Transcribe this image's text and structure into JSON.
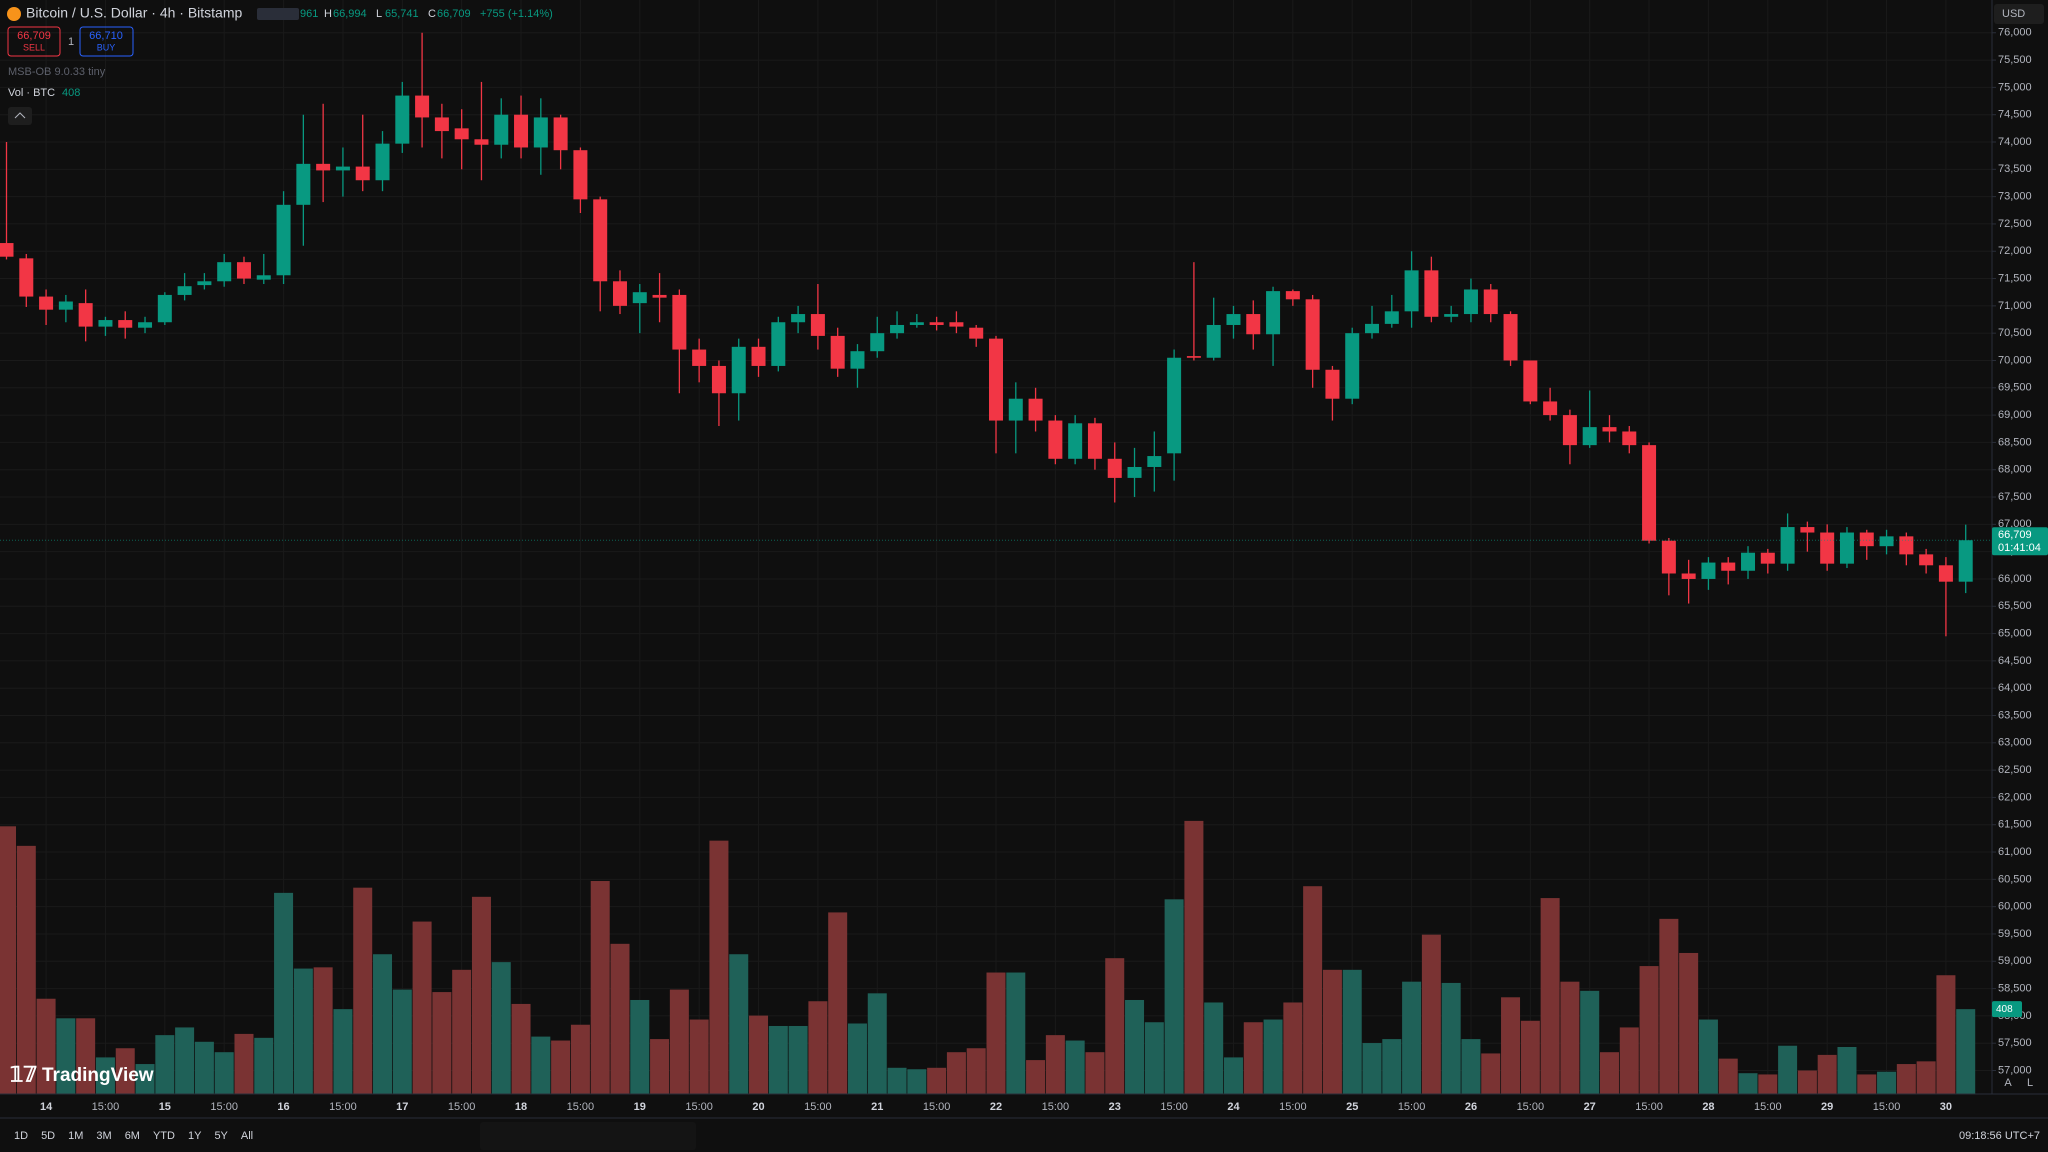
{
  "header": {
    "symbol": "Bitcoin / U.S. Dollar · 4h · Bitstamp",
    "open_partial": "961",
    "ohlc": [
      {
        "key": "H",
        "value": "66,994"
      },
      {
        "key": "L",
        "value": "65,741"
      },
      {
        "key": "C",
        "value": "66,709"
      }
    ],
    "change": "+755 (+1.14%)",
    "sell_price": "66,709",
    "sell": "SELL",
    "spread": "1",
    "buy_price": "66,710",
    "buy": "BUY",
    "indicator": "MSB-OB 9.0.33 tiny",
    "volume_name": "Vol · BTC",
    "volume_value": "408",
    "currency": "USD"
  },
  "toolbar": {
    "ranges": [
      "1D",
      "5D",
      "1M",
      "3M",
      "6M",
      "YTD",
      "1Y",
      "5Y",
      "All"
    ],
    "clock": "09:18:56 UTC+7",
    "logo": "TradingView",
    "auto": "A",
    "log": "L"
  },
  "chart_data": {
    "type": "candlestick",
    "categories": [
      null,
      null,
      "14",
      null,
      null,
      "15:00",
      null,
      null,
      "15",
      null,
      null,
      "15:00",
      null,
      null,
      "16",
      null,
      null,
      "15:00",
      null,
      null,
      "17",
      null,
      null,
      "15:00",
      null,
      null,
      "18",
      null,
      null,
      "15:00",
      null,
      null,
      "19",
      null,
      null,
      "15:00",
      null,
      null,
      "20",
      null,
      null,
      "15:00",
      null,
      null,
      "21",
      null,
      null,
      "15:00",
      null,
      null,
      "22",
      null,
      null,
      "15:00",
      null,
      null,
      "23",
      null,
      null,
      "15:00",
      null,
      null,
      "24",
      null,
      null,
      "15:00",
      null,
      null,
      "25",
      null,
      null,
      "15:00",
      null,
      null,
      "26",
      null,
      null,
      "15:00",
      null,
      null,
      "27",
      null,
      null,
      "15:00",
      null,
      null,
      "28",
      null,
      null,
      "15:00",
      null,
      null,
      "29",
      null,
      null,
      "15:00",
      null,
      null,
      "30",
      null
    ],
    "open": [
      72150,
      71870,
      71170,
      70930,
      71050,
      70620,
      70740,
      70600,
      70700,
      71200,
      71380,
      71450,
      71800,
      71480,
      71560,
      72850,
      73600,
      73480,
      73550,
      73300,
      73970,
      74850,
      74450,
      74250,
      74050,
      73950,
      74500,
      73900,
      74450,
      73850,
      72950,
      71450,
      71050,
      71200,
      71200,
      70200,
      69900,
      69400,
      70250,
      69900,
      70700,
      70850,
      70450,
      69850,
      70170,
      70500,
      70650,
      70700,
      70700,
      70600,
      70400,
      68900,
      69300,
      68900,
      68200,
      68850,
      68200,
      67850,
      68050,
      68300,
      70080,
      70050,
      70650,
      70850,
      70480,
      71270,
      71120,
      69830,
      69300,
      70500,
      70670,
      70900,
      71650,
      70800,
      70850,
      71300,
      70850,
      70000,
      69250,
      69000,
      68450,
      68780,
      68700,
      68450,
      66700,
      66100,
      66000,
      66300,
      66150,
      66480,
      66280,
      66950,
      66850,
      66280,
      66850,
      66600,
      66780,
      66450,
      66250,
      65950
    ],
    "high": [
      74000,
      71950,
      71300,
      71200,
      71300,
      70800,
      70900,
      70800,
      71250,
      71600,
      71600,
      71950,
      71900,
      71950,
      73100,
      74500,
      74700,
      73900,
      74500,
      74200,
      75100,
      76000,
      74700,
      74600,
      75100,
      74800,
      74850,
      74800,
      74500,
      73900,
      73000,
      71650,
      71400,
      71600,
      71300,
      70400,
      70000,
      70400,
      70400,
      70800,
      71000,
      71400,
      70600,
      70300,
      70800,
      70900,
      70850,
      70800,
      70900,
      70650,
      70450,
      69600,
      69500,
      69000,
      69000,
      68950,
      68500,
      68400,
      68700,
      70200,
      71800,
      71150,
      71000,
      71100,
      71350,
      71300,
      71200,
      69900,
      70600,
      71000,
      71200,
      72000,
      71900,
      71000,
      71500,
      71400,
      70900,
      70000,
      69500,
      69100,
      69450,
      69000,
      68800,
      68500,
      66750,
      66350,
      66400,
      66400,
      66600,
      66550,
      67200,
      67050,
      67000,
      66950,
      66900,
      66900,
      66850,
      66550,
      66400,
      66994
    ],
    "low": [
      71850,
      70980,
      70650,
      70700,
      70350,
      70450,
      70400,
      70500,
      70650,
      71100,
      71300,
      71350,
      71400,
      71400,
      71400,
      72100,
      72900,
      73000,
      73100,
      73100,
      73800,
      73900,
      73700,
      73500,
      73300,
      73700,
      73700,
      73400,
      73500,
      72700,
      70900,
      70850,
      70500,
      70700,
      69400,
      69600,
      68800,
      68900,
      69700,
      69800,
      70500,
      70200,
      69700,
      69500,
      70050,
      70400,
      70600,
      70550,
      70500,
      70250,
      68300,
      68300,
      68700,
      68100,
      68100,
      68000,
      67400,
      67500,
      67600,
      67800,
      70000,
      70000,
      70400,
      70200,
      69900,
      71000,
      69500,
      68900,
      69200,
      70400,
      70600,
      70600,
      70700,
      70700,
      70700,
      70700,
      69900,
      69200,
      68900,
      68100,
      68400,
      68500,
      68300,
      66650,
      65700,
      65550,
      65800,
      65900,
      66000,
      66100,
      66150,
      66500,
      66150,
      66200,
      66350,
      66450,
      66250,
      66100,
      64950,
      65741
    ],
    "close": [
      71900,
      71170,
      70930,
      71080,
      70620,
      70740,
      70600,
      70700,
      71200,
      71360,
      71450,
      71800,
      71500,
      71560,
      72850,
      73600,
      73480,
      73550,
      73300,
      73970,
      74850,
      74450,
      74200,
      74050,
      73950,
      74500,
      73900,
      74450,
      73850,
      72950,
      71450,
      71000,
      71250,
      71150,
      70200,
      69900,
      69400,
      70250,
      69900,
      70700,
      70850,
      70450,
      69850,
      70170,
      70500,
      70650,
      70700,
      70650,
      70620,
      70400,
      68900,
      69300,
      68900,
      68200,
      68850,
      68200,
      67850,
      68050,
      68250,
      70050,
      70050,
      70650,
      70850,
      70480,
      71270,
      71120,
      69830,
      69300,
      70500,
      70670,
      70900,
      71650,
      70800,
      70850,
      71300,
      70850,
      70000,
      69250,
      69000,
      68450,
      68780,
      68700,
      68450,
      66700,
      66100,
      66000,
      66300,
      66150,
      66480,
      66280,
      66950,
      66850,
      66280,
      66850,
      66600,
      66780,
      66450,
      66250,
      65950,
      66709
    ],
    "volume": [
      1287,
      1193,
      458,
      364,
      364,
      176,
      220,
      144,
      283,
      320,
      251,
      201,
      289,
      270,
      967,
      603,
      609,
      408,
      992,
      672,
      502,
      829,
      490,
      597,
      948,
      634,
      433,
      276,
      257,
      333,
      1024,
      722,
      452,
      264,
      502,
      358,
      1218,
      672,
      377,
      327,
      327,
      446,
      873,
      339,
      484,
      126,
      119,
      126,
      201,
      220,
      584,
      584,
      163,
      283,
      257,
      201,
      653,
      452,
      345,
      936,
      1313,
      440,
      176,
      345,
      358,
      440,
      999,
      597,
      597,
      245,
      264,
      540,
      766,
      534,
      264,
      195,
      465,
      352,
      942,
      540,
      496,
      201,
      320,
      615,
      842,
      678,
      358,
      170,
      100,
      94,
      232,
      113,
      188,
      226,
      94,
      107,
      144,
      157,
      571,
      408
    ],
    "up_color": "#089981",
    "down_color": "#f23645",
    "volume_up_color": "#1f6158",
    "volume_down_color": "#7a3333",
    "ylim": [
      56570,
      76600
    ],
    "yticks": [
      {
        "value": 57000,
        "label": "57,000"
      },
      {
        "value": 57500,
        "label": "57,500"
      },
      {
        "value": 58000,
        "label": "58,000"
      },
      {
        "value": 58500,
        "label": "58,500"
      },
      {
        "value": 59000,
        "label": "59,000"
      },
      {
        "value": 59500,
        "label": "59,500"
      },
      {
        "value": 60000,
        "label": "60,000"
      },
      {
        "value": 60500,
        "label": "60,500"
      },
      {
        "value": 61000,
        "label": "61,000"
      },
      {
        "value": 61500,
        "label": "61,500"
      },
      {
        "value": 62000,
        "label": "62,000"
      },
      {
        "value": 62500,
        "label": "62,500"
      },
      {
        "value": 63000,
        "label": "63,000"
      },
      {
        "value": 63500,
        "label": "63,500"
      },
      {
        "value": 64000,
        "label": "64,000"
      },
      {
        "value": 64500,
        "label": "64,500"
      },
      {
        "value": 65000,
        "label": "65,000"
      },
      {
        "value": 65500,
        "label": "65,500"
      },
      {
        "value": 66000,
        "label": "66,000"
      },
      {
        "value": 66500,
        "label": "66,500"
      },
      {
        "value": 67000,
        "label": "67,000"
      },
      {
        "value": 67500,
        "label": "67,500"
      },
      {
        "value": 68000,
        "label": "68,000"
      },
      {
        "value": 68500,
        "label": "68,500"
      },
      {
        "value": 69000,
        "label": "69,000"
      },
      {
        "value": 69500,
        "label": "69,500"
      },
      {
        "value": 70000,
        "label": "70,000"
      },
      {
        "value": 70500,
        "label": "70,500"
      },
      {
        "value": 71000,
        "label": "71,000"
      },
      {
        "value": 71500,
        "label": "71,500"
      },
      {
        "value": 72000,
        "label": "72,000"
      },
      {
        "value": 72500,
        "label": "72,500"
      },
      {
        "value": 73000,
        "label": "73,000"
      },
      {
        "value": 73500,
        "label": "73,500"
      },
      {
        "value": 74000,
        "label": "74,000"
      },
      {
        "value": 74500,
        "label": "74,500"
      },
      {
        "value": 75000,
        "label": "75,000"
      },
      {
        "value": 75500,
        "label": "75,500"
      },
      {
        "value": 76000,
        "label": "76,000"
      }
    ],
    "grid": true,
    "last_price": {
      "value": 66709,
      "label": "66,709"
    },
    "countdown": "01:41:04"
  }
}
